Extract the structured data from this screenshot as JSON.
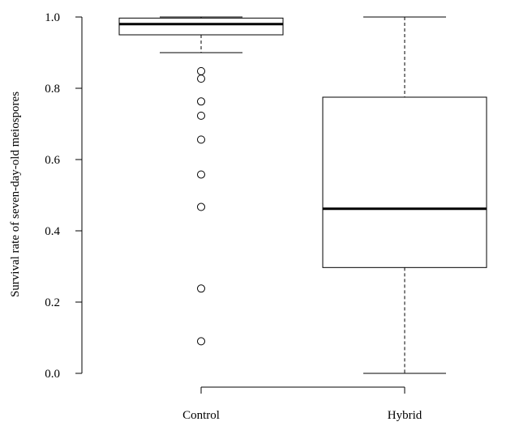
{
  "chart_data": {
    "type": "boxplot",
    "title": "",
    "xlabel": "",
    "ylabel": "Survival rate of seven-day-old meiospores",
    "ylim": [
      0.0,
      1.0
    ],
    "yticks": [
      "0.0",
      "0.2",
      "0.4",
      "0.6",
      "0.8",
      "1.0"
    ],
    "categories": [
      "Control",
      "Hybrid"
    ],
    "grid": false,
    "boxes": [
      {
        "category": "Control",
        "whisker_low": 0.9,
        "q1": 0.95,
        "median": 0.98,
        "q3": 0.997,
        "whisker_high": 1.0,
        "outliers": [
          0.848,
          0.827,
          0.763,
          0.723,
          0.656,
          0.558,
          0.467,
          0.238,
          0.09
        ]
      },
      {
        "category": "Hybrid",
        "whisker_low": 0.0,
        "q1": 0.297,
        "median": 0.462,
        "q3": 0.775,
        "whisker_high": 1.0,
        "outliers": []
      }
    ]
  }
}
